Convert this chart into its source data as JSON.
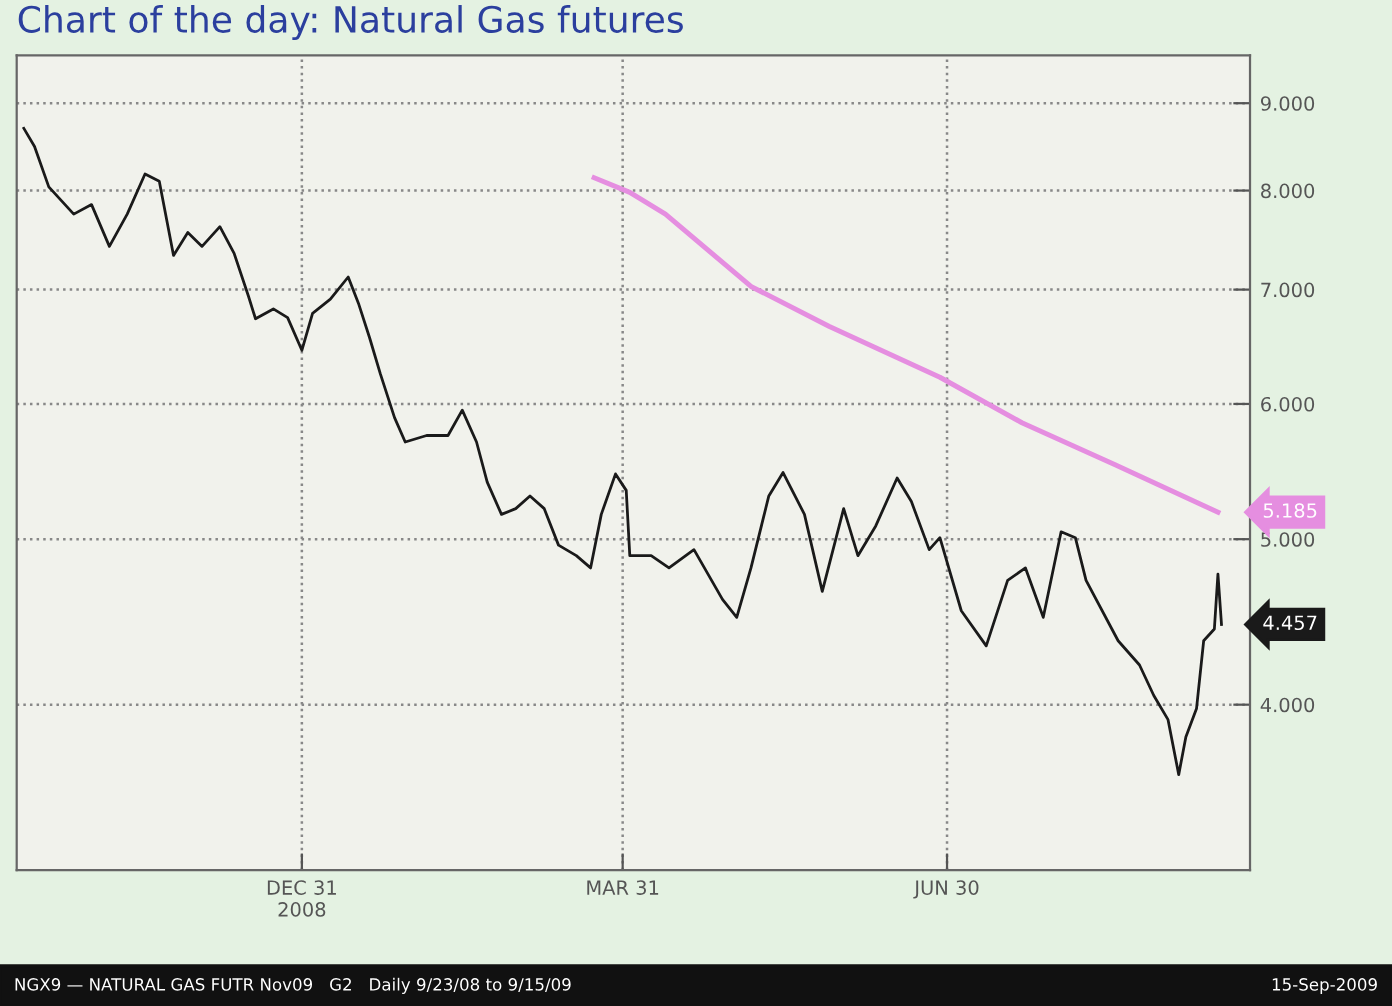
{
  "chart_data": {
    "type": "line",
    "title": "Chart of the day: Natural Gas futures",
    "series": [
      {
        "color": "#1a1a1a",
        "x": [
          "2008-10-14",
          "2008-10-17",
          "2008-10-21",
          "2008-10-28",
          "2008-11-02",
          "2008-11-07",
          "2008-11-12",
          "2008-11-17",
          "2008-11-21",
          "2008-11-25",
          "2008-11-29",
          "2008-12-03",
          "2008-12-08",
          "2008-12-12",
          "2008-12-16",
          "2008-12-18",
          "2008-12-23",
          "2008-12-27",
          "2008-12-31",
          "2009-01-03",
          "2009-01-08",
          "2009-01-13",
          "2009-01-16",
          "2009-01-19",
          "2009-01-22",
          "2009-01-26",
          "2009-01-29",
          "2009-02-04",
          "2009-02-10",
          "2009-02-14",
          "2009-02-18",
          "2009-02-21",
          "2009-02-25",
          "2009-03-01",
          "2009-03-05",
          "2009-03-09",
          "2009-03-13",
          "2009-03-18",
          "2009-03-22",
          "2009-03-25",
          "2009-03-29",
          "2009-04-01",
          "2009-04-02",
          "2009-04-08",
          "2009-04-13",
          "2009-04-20",
          "2009-04-28",
          "2009-05-02",
          "2009-05-06",
          "2009-05-11",
          "2009-05-15",
          "2009-05-21",
          "2009-05-26",
          "2009-06-01",
          "2009-06-05",
          "2009-06-10",
          "2009-06-16",
          "2009-06-20",
          "2009-06-25",
          "2009-06-28",
          "2009-07-04",
          "2009-07-11",
          "2009-07-17",
          "2009-07-22",
          "2009-07-27",
          "2009-08-01",
          "2009-08-05",
          "2009-08-08",
          "2009-08-17",
          "2009-08-23",
          "2009-08-27",
          "2009-08-31",
          "2009-09-03",
          "2009-09-05",
          "2009-09-08",
          "2009-09-10",
          "2009-09-13",
          "2009-09-14",
          "2009-09-15"
        ],
        "values": [
          8.7,
          8.49,
          8.04,
          7.75,
          7.85,
          7.42,
          7.75,
          8.18,
          8.1,
          7.33,
          7.56,
          7.42,
          7.62,
          7.35,
          6.94,
          6.73,
          6.82,
          6.74,
          6.45,
          6.78,
          6.91,
          7.12,
          6.86,
          6.56,
          6.25,
          5.89,
          5.7,
          5.75,
          5.75,
          5.95,
          5.7,
          5.4,
          5.17,
          5.21,
          5.3,
          5.21,
          4.96,
          4.89,
          4.81,
          5.17,
          5.46,
          5.34,
          4.89,
          4.89,
          4.81,
          4.93,
          4.61,
          4.5,
          4.81,
          5.3,
          5.47,
          5.17,
          4.66,
          5.21,
          4.89,
          5.09,
          5.43,
          5.26,
          4.93,
          5.01,
          4.54,
          4.33,
          4.73,
          4.81,
          4.5,
          5.05,
          5.01,
          4.73,
          4.36,
          4.22,
          4.05,
          3.92,
          3.64,
          3.83,
          3.98,
          4.36,
          4.43,
          4.77,
          4.457
        ]
      },
      {
        "color": "#e58ee0",
        "x": [
          "2009-03-23",
          "2009-04-02",
          "2009-04-12",
          "2009-05-06",
          "2009-05-28",
          "2009-06-28",
          "2009-07-21",
          "2009-08-16",
          "2009-09-14"
        ],
        "values": [
          8.14,
          7.98,
          7.75,
          7.03,
          6.66,
          6.22,
          5.85,
          5.53,
          5.185
        ]
      }
    ],
    "xlim": [
      "2008-10-12",
      "2009-09-23"
    ],
    "xticks": [
      {
        "value": "2008-12-31",
        "label": "DEC 31\n2008"
      },
      {
        "value": "2009-03-31",
        "label": "MAR 31"
      },
      {
        "value": "2009-06-30",
        "label": "JUN 30"
      }
    ],
    "ylim": [
      3.2,
      9.6
    ],
    "yticks": [
      {
        "value": 4,
        "label": "4.000"
      },
      {
        "value": 5,
        "label": "5.000"
      },
      {
        "value": 6,
        "label": "6.000"
      },
      {
        "value": 7,
        "label": "7.000"
      },
      {
        "value": 8,
        "label": "8.000"
      },
      {
        "value": 9,
        "label": "9.000"
      }
    ],
    "log": "y",
    "grid": true,
    "annotations": [
      {
        "text": "4.457",
        "x": "2009-09-15",
        "y": 4.457
      },
      {
        "text": "5.185",
        "x": "2009-09-14",
        "y": 5.185
      },
      "NGX9 — NATURAL GAS FUTR Nov09   G2   Daily 9/23/08 to 9/15/09",
      "15-Sep-2009"
    ]
  }
}
